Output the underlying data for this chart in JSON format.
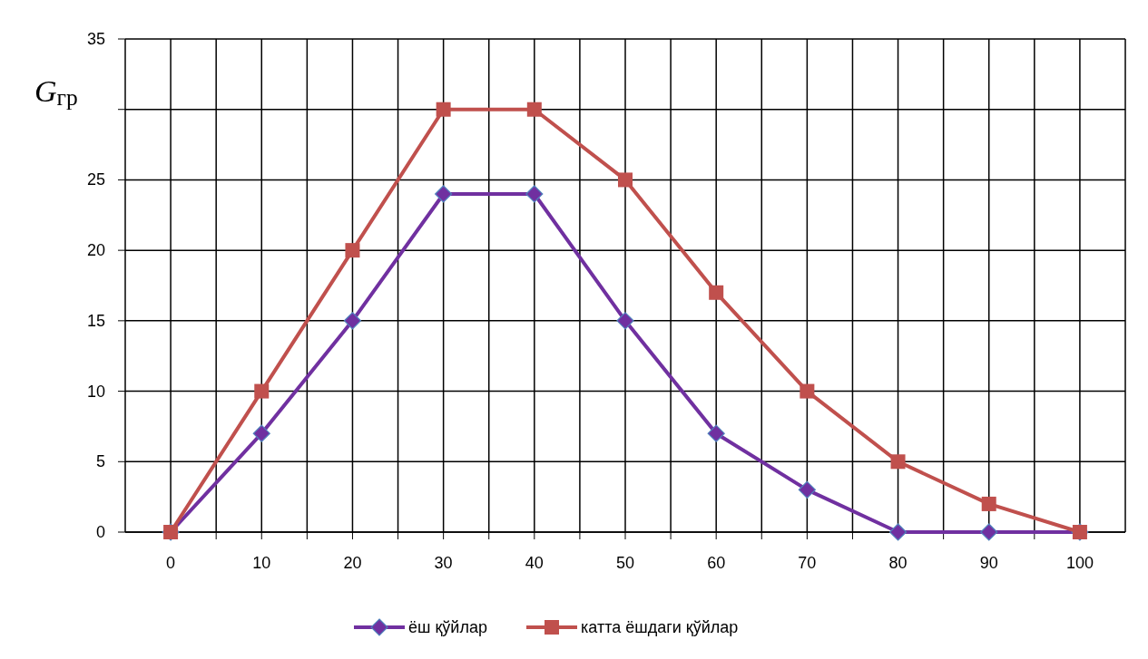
{
  "chart_data": {
    "type": "line",
    "ylabel": "G$_{гр}$",
    "x": [
      0,
      10,
      20,
      30,
      40,
      50,
      60,
      70,
      80,
      90,
      100
    ],
    "series": [
      {
        "name": "ёш қўйлар",
        "color": "#7030a0",
        "marker": "diamond",
        "values": [
          0,
          7,
          15,
          24,
          24,
          15,
          7,
          3,
          0,
          0,
          0
        ]
      },
      {
        "name": "катта ёшдаги қўйлар",
        "color": "#c0504d",
        "marker": "square",
        "values": [
          0,
          10,
          20,
          30,
          30,
          25,
          17,
          10,
          5,
          2,
          0
        ]
      }
    ],
    "xlim": [
      -5,
      105
    ],
    "xticks": [
      0,
      {
        "value": 5,
        "label": null
      },
      10,
      {
        "value": 15,
        "label": null
      },
      20,
      {
        "value": 25,
        "label": null
      },
      30,
      {
        "value": 35,
        "label": null
      },
      40,
      {
        "value": 45,
        "label": null
      },
      50,
      {
        "value": 55,
        "label": null
      },
      60,
      {
        "value": 65,
        "label": null
      },
      70,
      {
        "value": 75,
        "label": null
      },
      80,
      {
        "value": 85,
        "label": null
      },
      90,
      {
        "value": 95,
        "label": null
      },
      100
    ],
    "ylim": [
      0,
      35
    ],
    "yticks": [
      0,
      5,
      10,
      15,
      20,
      25,
      {
        "value": 30,
        "label": null
      },
      35
    ],
    "grid": true,
    "legend": "bottom"
  }
}
